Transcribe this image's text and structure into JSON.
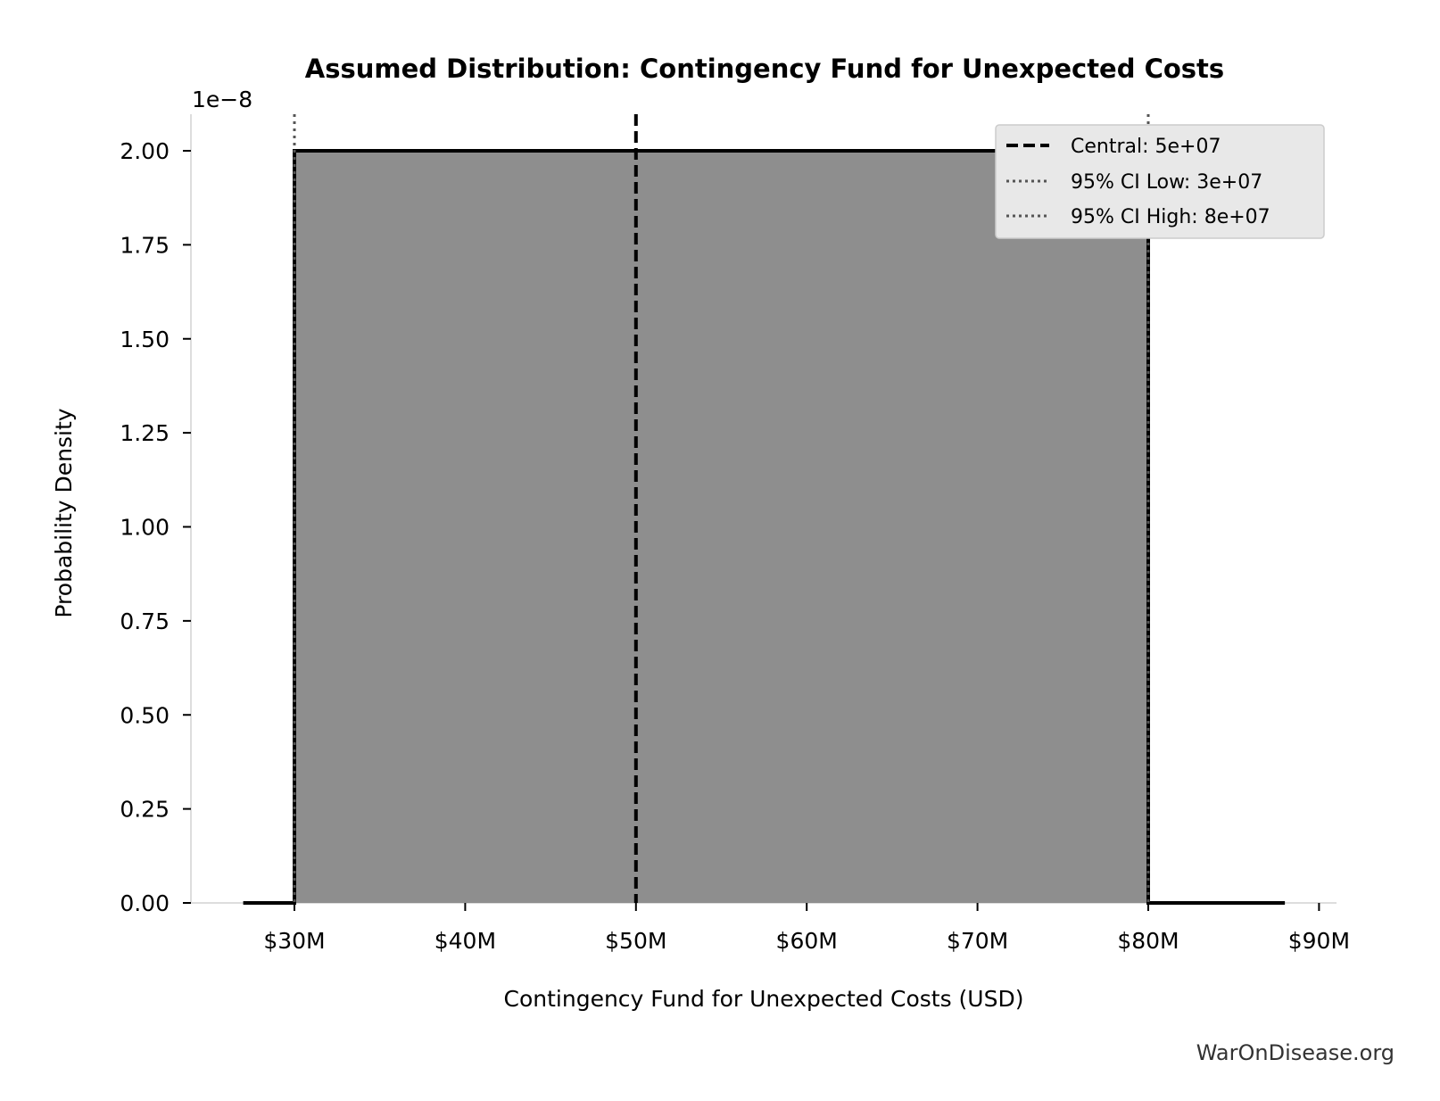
{
  "chart_data": {
    "type": "area",
    "title": "Assumed Distribution: Contingency Fund for Unexpected Costs",
    "xlabel": "Contingency Fund for Unexpected Costs (USD)",
    "ylabel": "Probability Density",
    "y_offset_label": "1e−8",
    "xlim": [
      24000000,
      91000000
    ],
    "ylim": [
      0,
      2.1e-08
    ],
    "x_ticks": [
      30000000,
      40000000,
      50000000,
      60000000,
      70000000,
      80000000,
      90000000
    ],
    "x_tick_labels": [
      "$30M",
      "$40M",
      "$50M",
      "$60M",
      "$70M",
      "$80M",
      "$90M"
    ],
    "y_ticks": [
      0,
      2.5e-09,
      5e-09,
      7.5e-09,
      1e-08,
      1.25e-08,
      1.5e-08,
      1.75e-08,
      2e-08
    ],
    "y_tick_labels": [
      "0.00",
      "0.25",
      "0.50",
      "0.75",
      "1.00",
      "1.25",
      "1.50",
      "1.75",
      "2.00"
    ],
    "grid": false,
    "series": [
      {
        "x": [
          27000000,
          30000000,
          30000000,
          80000000,
          80000000,
          88000000
        ],
        "y": [
          0,
          0,
          2e-08,
          2e-08,
          0,
          0
        ],
        "fill_range": [
          30000000,
          80000000
        ],
        "color": "#8e8e8e"
      }
    ],
    "vlines": [
      {
        "name": "Central: 5e+07",
        "x": 50000000,
        "style": "dashed",
        "color": "#000000"
      },
      {
        "name": "95% CI Low: 3e+07",
        "x": 30000000,
        "style": "dotted",
        "color": "#555555"
      },
      {
        "name": "95% CI High: 8e+07",
        "x": 80000000,
        "style": "dotted",
        "color": "#555555"
      }
    ],
    "legend_position": "top-right",
    "watermark": "WarOnDisease.org"
  }
}
